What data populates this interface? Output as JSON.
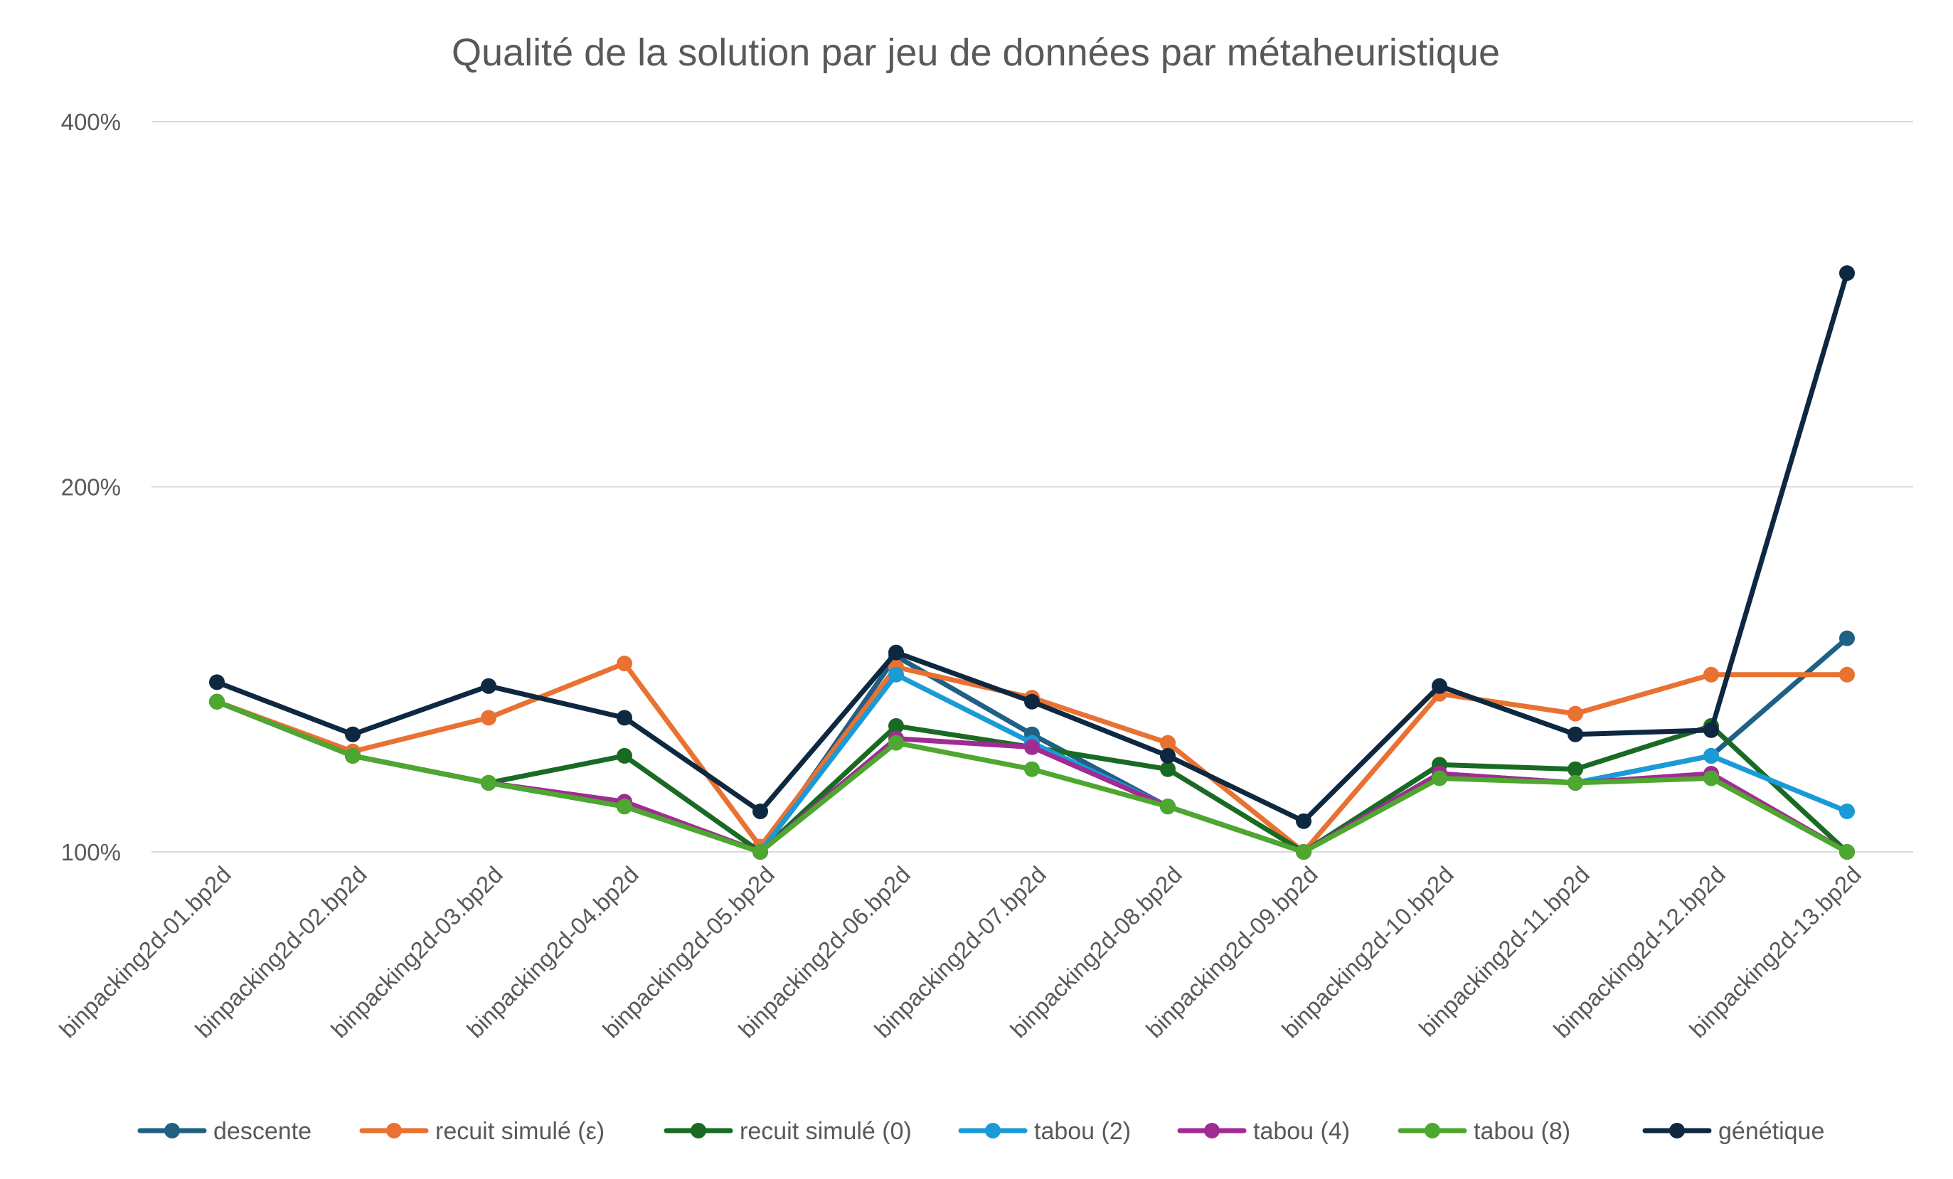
{
  "chart_data": {
    "type": "line",
    "title": "Qualité de la solution par jeu de données par métaheuristique",
    "xlabel": "",
    "ylabel": "",
    "y_scale": "log",
    "ylim": [
      100,
      400
    ],
    "y_ticks": [
      {
        "value": 100,
        "label": "100%"
      },
      {
        "value": 200,
        "label": "200%"
      },
      {
        "value": 400,
        "label": "400%"
      }
    ],
    "grid": true,
    "legend_position": "bottom",
    "categories": [
      "binpacking2d-01.bp2d",
      "binpacking2d-02.bp2d",
      "binpacking2d-03.bp2d",
      "binpacking2d-04.bp2d",
      "binpacking2d-05.bp2d",
      "binpacking2d-06.bp2d",
      "binpacking2d-07.bp2d",
      "binpacking2d-08.bp2d",
      "binpacking2d-09.bp2d",
      "binpacking2d-10.bp2d",
      "binpacking2d-11.bp2d",
      "binpacking2d-12.bp2d",
      "binpacking2d-13.bp2d"
    ],
    "series": [
      {
        "name": "descente",
        "color": "#1f6084",
        "values": [
          133,
          120,
          114,
          109,
          100,
          145,
          125,
          109,
          100,
          116,
          114,
          120,
          150
        ]
      },
      {
        "name": "recuit simulé (ε)",
        "color": "#e97132",
        "values": [
          133,
          121,
          129,
          143,
          101,
          142,
          134,
          123,
          100,
          135,
          130,
          140,
          140
        ]
      },
      {
        "name": "recuit simulé (0)",
        "color": "#196b24",
        "values": [
          133,
          120,
          114,
          120,
          100,
          127,
          122,
          117,
          100,
          118,
          117,
          127,
          100
        ]
      },
      {
        "name": "tabou (2)",
        "color": "#1a9ad6",
        "values": [
          133,
          120,
          114,
          109,
          100,
          140,
          123,
          109,
          100,
          116,
          114,
          120,
          108
        ]
      },
      {
        "name": "tabou (4)",
        "color": "#a02b93",
        "values": [
          133,
          120,
          114,
          110,
          100,
          124,
          122,
          109,
          100,
          116,
          114,
          116,
          100
        ]
      },
      {
        "name": "tabou (8)",
        "color": "#4ea72e",
        "values": [
          133,
          120,
          114,
          109,
          100,
          123,
          117,
          109,
          100,
          115,
          114,
          115,
          100
        ]
      },
      {
        "name": "génétique",
        "color": "#0e2841",
        "values": [
          138,
          125,
          137,
          129,
          108,
          146,
          133,
          120,
          106,
          137,
          125,
          126,
          300
        ]
      }
    ]
  }
}
